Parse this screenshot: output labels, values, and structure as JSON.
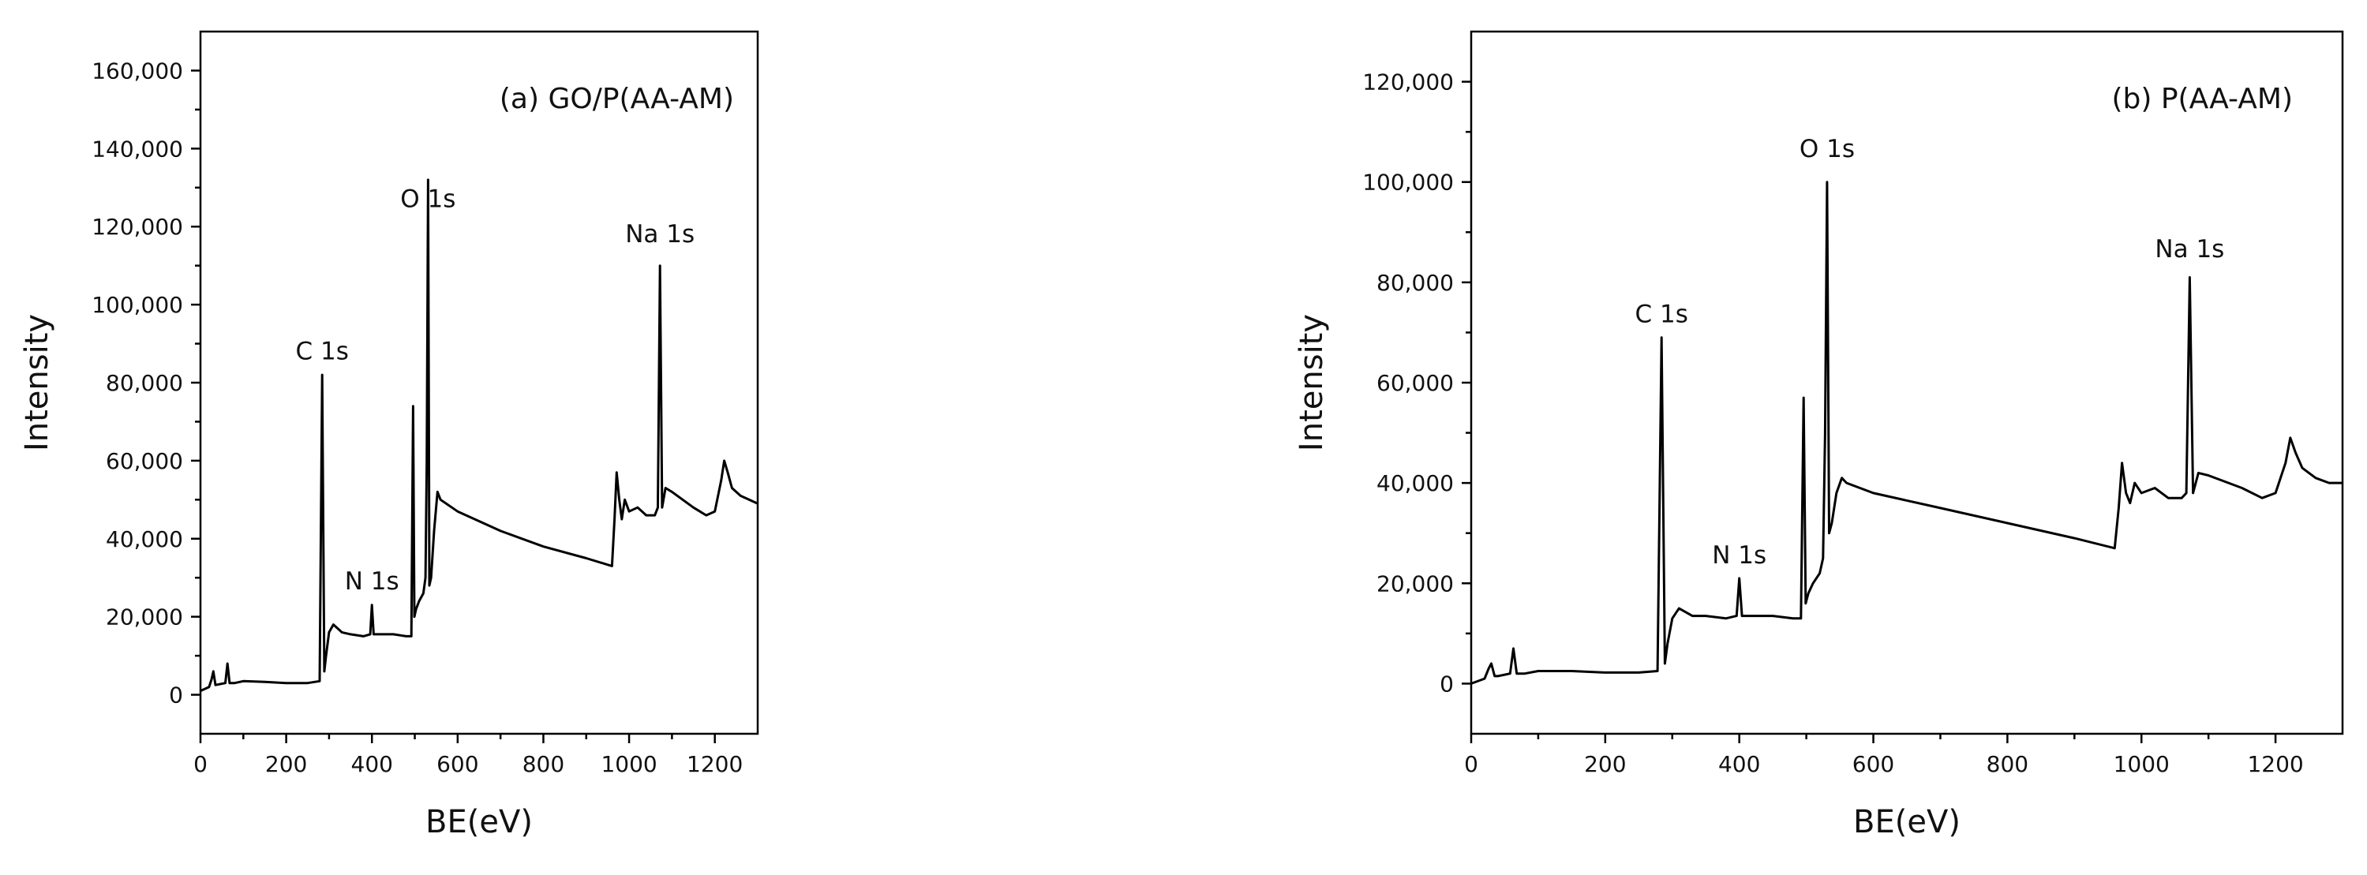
{
  "chart_data": [
    {
      "type": "line",
      "title": "(a) GO/P(AA-AM)",
      "xlabel": "BE(eV)",
      "ylabel": "Intensity",
      "xlim": [
        0,
        1300
      ],
      "ylim": [
        -10000,
        170000
      ],
      "xticks": [
        0,
        200,
        400,
        600,
        800,
        1000,
        1200
      ],
      "xtick_labels": [
        "0",
        "200",
        "400",
        "600",
        "800",
        "1000",
        "1200"
      ],
      "yticks": [
        0,
        20000,
        40000,
        60000,
        80000,
        100000,
        120000,
        140000,
        160000
      ],
      "ytick_labels": [
        "0",
        "20,000",
        "40,000",
        "60,000",
        "80,000",
        "100,000",
        "120,000",
        "140,000",
        "160,000"
      ],
      "grid": false,
      "annotations": [
        {
          "text": "C 1s",
          "x": 284,
          "y": 86000
        },
        {
          "text": "N 1s",
          "x": 400,
          "y": 27000
        },
        {
          "text": "O 1s",
          "x": 531,
          "y": 125000
        },
        {
          "text": "Na 1s",
          "x": 1072,
          "y": 116000
        }
      ],
      "series": [
        {
          "name": "GO/P(AA-AM)",
          "x": [
            0,
            20,
            26,
            30,
            35,
            40,
            58,
            63,
            68,
            80,
            100,
            150,
            200,
            250,
            278,
            284,
            289,
            293,
            300,
            310,
            330,
            350,
            380,
            396,
            400,
            404,
            420,
            450,
            480,
            492,
            496,
            499,
            503,
            510,
            520,
            525,
            528,
            531,
            534,
            538,
            545,
            553,
            560,
            600,
            700,
            800,
            900,
            960,
            966,
            971,
            977,
            983,
            990,
            1000,
            1020,
            1040,
            1060,
            1067,
            1072,
            1077,
            1085,
            1100,
            1150,
            1180,
            1200,
            1215,
            1222,
            1230,
            1240,
            1260,
            1280,
            1300
          ],
          "values": [
            1000,
            2000,
            4000,
            6000,
            2500,
            2600,
            3000,
            8000,
            3000,
            3000,
            3500,
            3300,
            3000,
            3000,
            3500,
            82000,
            6000,
            10000,
            16000,
            18000,
            16000,
            15500,
            15000,
            15500,
            23000,
            15500,
            15500,
            15500,
            15000,
            15000,
            74000,
            20000,
            22000,
            24000,
            26000,
            30000,
            60000,
            132000,
            28000,
            30000,
            42000,
            52000,
            50000,
            47000,
            42000,
            38000,
            35000,
            33000,
            45000,
            57000,
            50000,
            45000,
            50000,
            47000,
            48000,
            46000,
            46000,
            48000,
            110000,
            48000,
            53000,
            52000,
            48000,
            46000,
            47000,
            55000,
            60000,
            57000,
            53000,
            51000,
            50000,
            49000
          ]
        }
      ]
    },
    {
      "type": "line",
      "title": "(b) P(AA-AM)",
      "xlabel": "BE(eV)",
      "ylabel": "Intensity",
      "xlim": [
        0,
        1300
      ],
      "ylim": [
        -10000,
        130000
      ],
      "xticks": [
        0,
        200,
        400,
        600,
        800,
        1000,
        1200
      ],
      "xtick_labels": [
        "0",
        "200",
        "400",
        "600",
        "800",
        "1000",
        "1200"
      ],
      "yticks": [
        0,
        20000,
        40000,
        60000,
        80000,
        100000,
        120000
      ],
      "ytick_labels": [
        "0",
        "20,000",
        "40,000",
        "60,000",
        "80,000",
        "100,000",
        "120,000"
      ],
      "grid": false,
      "annotations": [
        {
          "text": "C 1s",
          "x": 284,
          "y": 72000
        },
        {
          "text": "N 1s",
          "x": 400,
          "y": 24000
        },
        {
          "text": "O 1s",
          "x": 531,
          "y": 105000
        },
        {
          "text": "Na 1s",
          "x": 1072,
          "y": 85000
        }
      ],
      "series": [
        {
          "name": "P(AA-AM)",
          "x": [
            0,
            20,
            26,
            30,
            35,
            40,
            58,
            63,
            68,
            80,
            100,
            150,
            200,
            250,
            278,
            284,
            289,
            293,
            300,
            310,
            330,
            350,
            380,
            396,
            400,
            404,
            420,
            450,
            480,
            492,
            496,
            499,
            503,
            510,
            520,
            525,
            528,
            531,
            534,
            538,
            545,
            553,
            560,
            600,
            700,
            800,
            900,
            960,
            966,
            971,
            977,
            983,
            990,
            1000,
            1020,
            1040,
            1060,
            1067,
            1072,
            1077,
            1085,
            1100,
            1150,
            1180,
            1200,
            1215,
            1222,
            1230,
            1240,
            1260,
            1280,
            1300
          ],
          "values": [
            0,
            1000,
            3000,
            4000,
            1500,
            1500,
            2000,
            7000,
            2000,
            2000,
            2500,
            2500,
            2200,
            2200,
            2500,
            69000,
            4000,
            8000,
            13000,
            15000,
            13500,
            13500,
            13000,
            13500,
            21000,
            13500,
            13500,
            13500,
            13000,
            13000,
            57000,
            16000,
            18000,
            20000,
            22000,
            25000,
            50000,
            100000,
            30000,
            32000,
            38000,
            41000,
            40000,
            38000,
            35000,
            32000,
            29000,
            27000,
            35000,
            44000,
            38000,
            36000,
            40000,
            38000,
            39000,
            37000,
            37000,
            38000,
            81000,
            38000,
            42000,
            41500,
            39000,
            37000,
            38000,
            44000,
            49000,
            46000,
            43000,
            41000,
            40000,
            40000
          ]
        }
      ]
    }
  ]
}
